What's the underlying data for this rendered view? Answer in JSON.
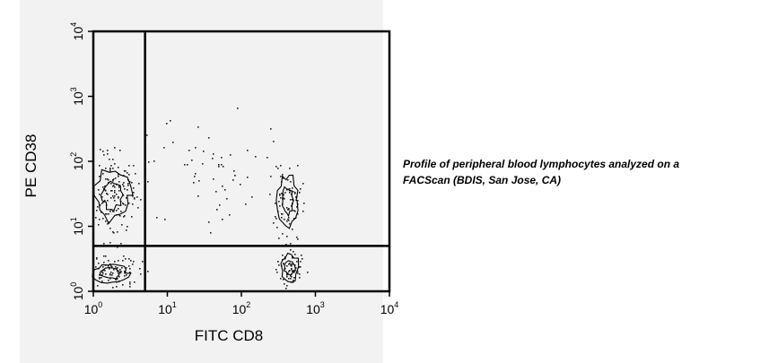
{
  "chart_data": {
    "type": "scatter",
    "scale": "log",
    "xlabel": "FITC CD8",
    "ylabel": "PE CD38",
    "xlim": [
      1,
      10000
    ],
    "ylim": [
      1,
      10000
    ],
    "x_ticks": [
      {
        "base": "10",
        "exp": "0"
      },
      {
        "base": "10",
        "exp": "1"
      },
      {
        "base": "10",
        "exp": "2"
      },
      {
        "base": "10",
        "exp": "3"
      },
      {
        "base": "10",
        "exp": "4"
      }
    ],
    "y_ticks": [
      {
        "base": "10",
        "exp": "0"
      },
      {
        "base": "10",
        "exp": "1"
      },
      {
        "base": "10",
        "exp": "2"
      },
      {
        "base": "10",
        "exp": "3"
      },
      {
        "base": "10",
        "exp": "4"
      }
    ],
    "quadrant_gates": {
      "x": 5,
      "y": 5
    },
    "grid": false,
    "populations": [
      {
        "x": 1.7,
        "y": 1.9,
        "spread_x": 0.17,
        "spread_y": 0.13,
        "count": 110
      },
      {
        "x": 1.8,
        "y": 30,
        "spread_x": 0.17,
        "spread_y": 0.32,
        "count": 160
      },
      {
        "x": 450,
        "y": 2.3,
        "spread_x": 0.09,
        "spread_y": 0.16,
        "count": 70
      },
      {
        "x": 420,
        "y": 25,
        "spread_x": 0.09,
        "spread_y": 0.32,
        "count": 80
      },
      {
        "x": 30,
        "y": 80,
        "spread_x": 0.5,
        "spread_y": 0.45,
        "count": 60
      }
    ]
  },
  "caption": {
    "line1": "Profile of peripheral blood lymphocytes analyzed on a",
    "line2": "FACScan (BDIS, San Jose, CA)"
  },
  "colors": {
    "background": "#f2f2f2",
    "ink": "#000000"
  }
}
